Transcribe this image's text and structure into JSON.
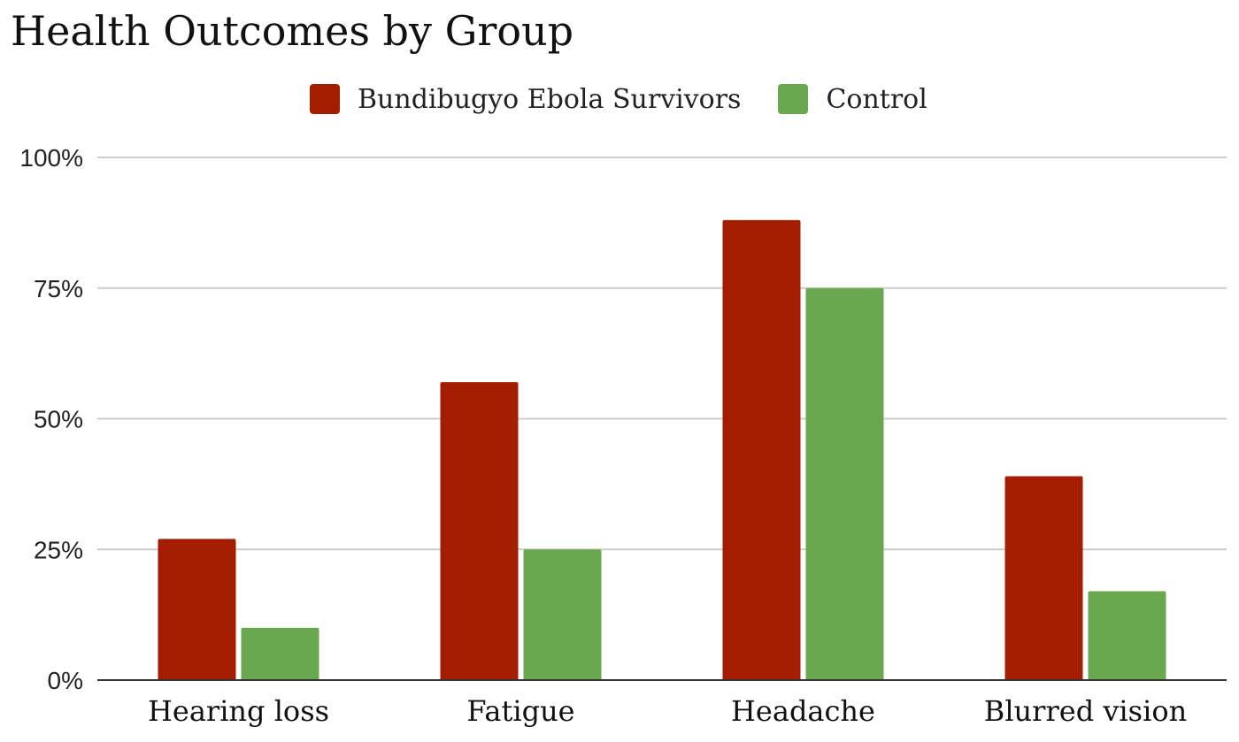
{
  "chart_data": {
    "type": "bar",
    "title": "Health Outcomes by Group",
    "xlabel": "",
    "ylabel": "",
    "categories": [
      "Hearing loss",
      "Fatigue",
      "Headache",
      "Blurred vision"
    ],
    "series": [
      {
        "name": "Bundibugyo Ebola Survivors",
        "color": "#a51d00",
        "values": [
          27,
          57,
          88,
          39
        ]
      },
      {
        "name": "Control",
        "color": "#6aa84f",
        "values": [
          10,
          25,
          75,
          17
        ]
      }
    ],
    "ylim": [
      0,
      100
    ],
    "yticks": [
      0,
      25,
      50,
      75,
      100
    ],
    "ytick_labels": [
      "0%",
      "25%",
      "50%",
      "75%",
      "100%"
    ],
    "grid": true,
    "legend_position": "top"
  }
}
